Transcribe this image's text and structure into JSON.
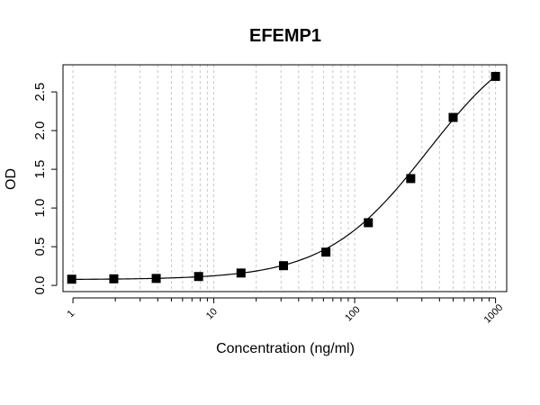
{
  "chart_data": {
    "type": "scatter",
    "title": "EFEMP1",
    "xlabel": "Concentration (ng/ml)",
    "ylabel": "OD",
    "x_scale": "log",
    "xlim": [
      0.85,
      1200
    ],
    "ylim": [
      -0.08,
      2.85
    ],
    "x_ticks": [
      1,
      10,
      100,
      1000
    ],
    "x_tick_labels": [
      "1",
      "10",
      "100",
      "1000"
    ],
    "y_ticks": [
      0,
      0.5,
      1,
      1.5,
      2,
      2.5
    ],
    "y_tick_labels": [
      "0.0",
      "0.5",
      "1.0",
      "1.5",
      "2.0",
      "2.5"
    ],
    "grid": "vertical dotted at each log minor decade step",
    "marker": "filled-square",
    "fit_curve": "4-parameter logistic",
    "series": [
      {
        "x": [
          0.98,
          1.95,
          3.9,
          7.8,
          15.6,
          31.25,
          62.5,
          125,
          250,
          500,
          1000
        ],
        "y": [
          0.08,
          0.085,
          0.09,
          0.115,
          0.16,
          0.255,
          0.43,
          0.81,
          1.38,
          2.17,
          2.7
        ]
      }
    ],
    "colors": {
      "marker": "#000000",
      "curve": "#000000",
      "grid": "#c8c8c8"
    }
  }
}
